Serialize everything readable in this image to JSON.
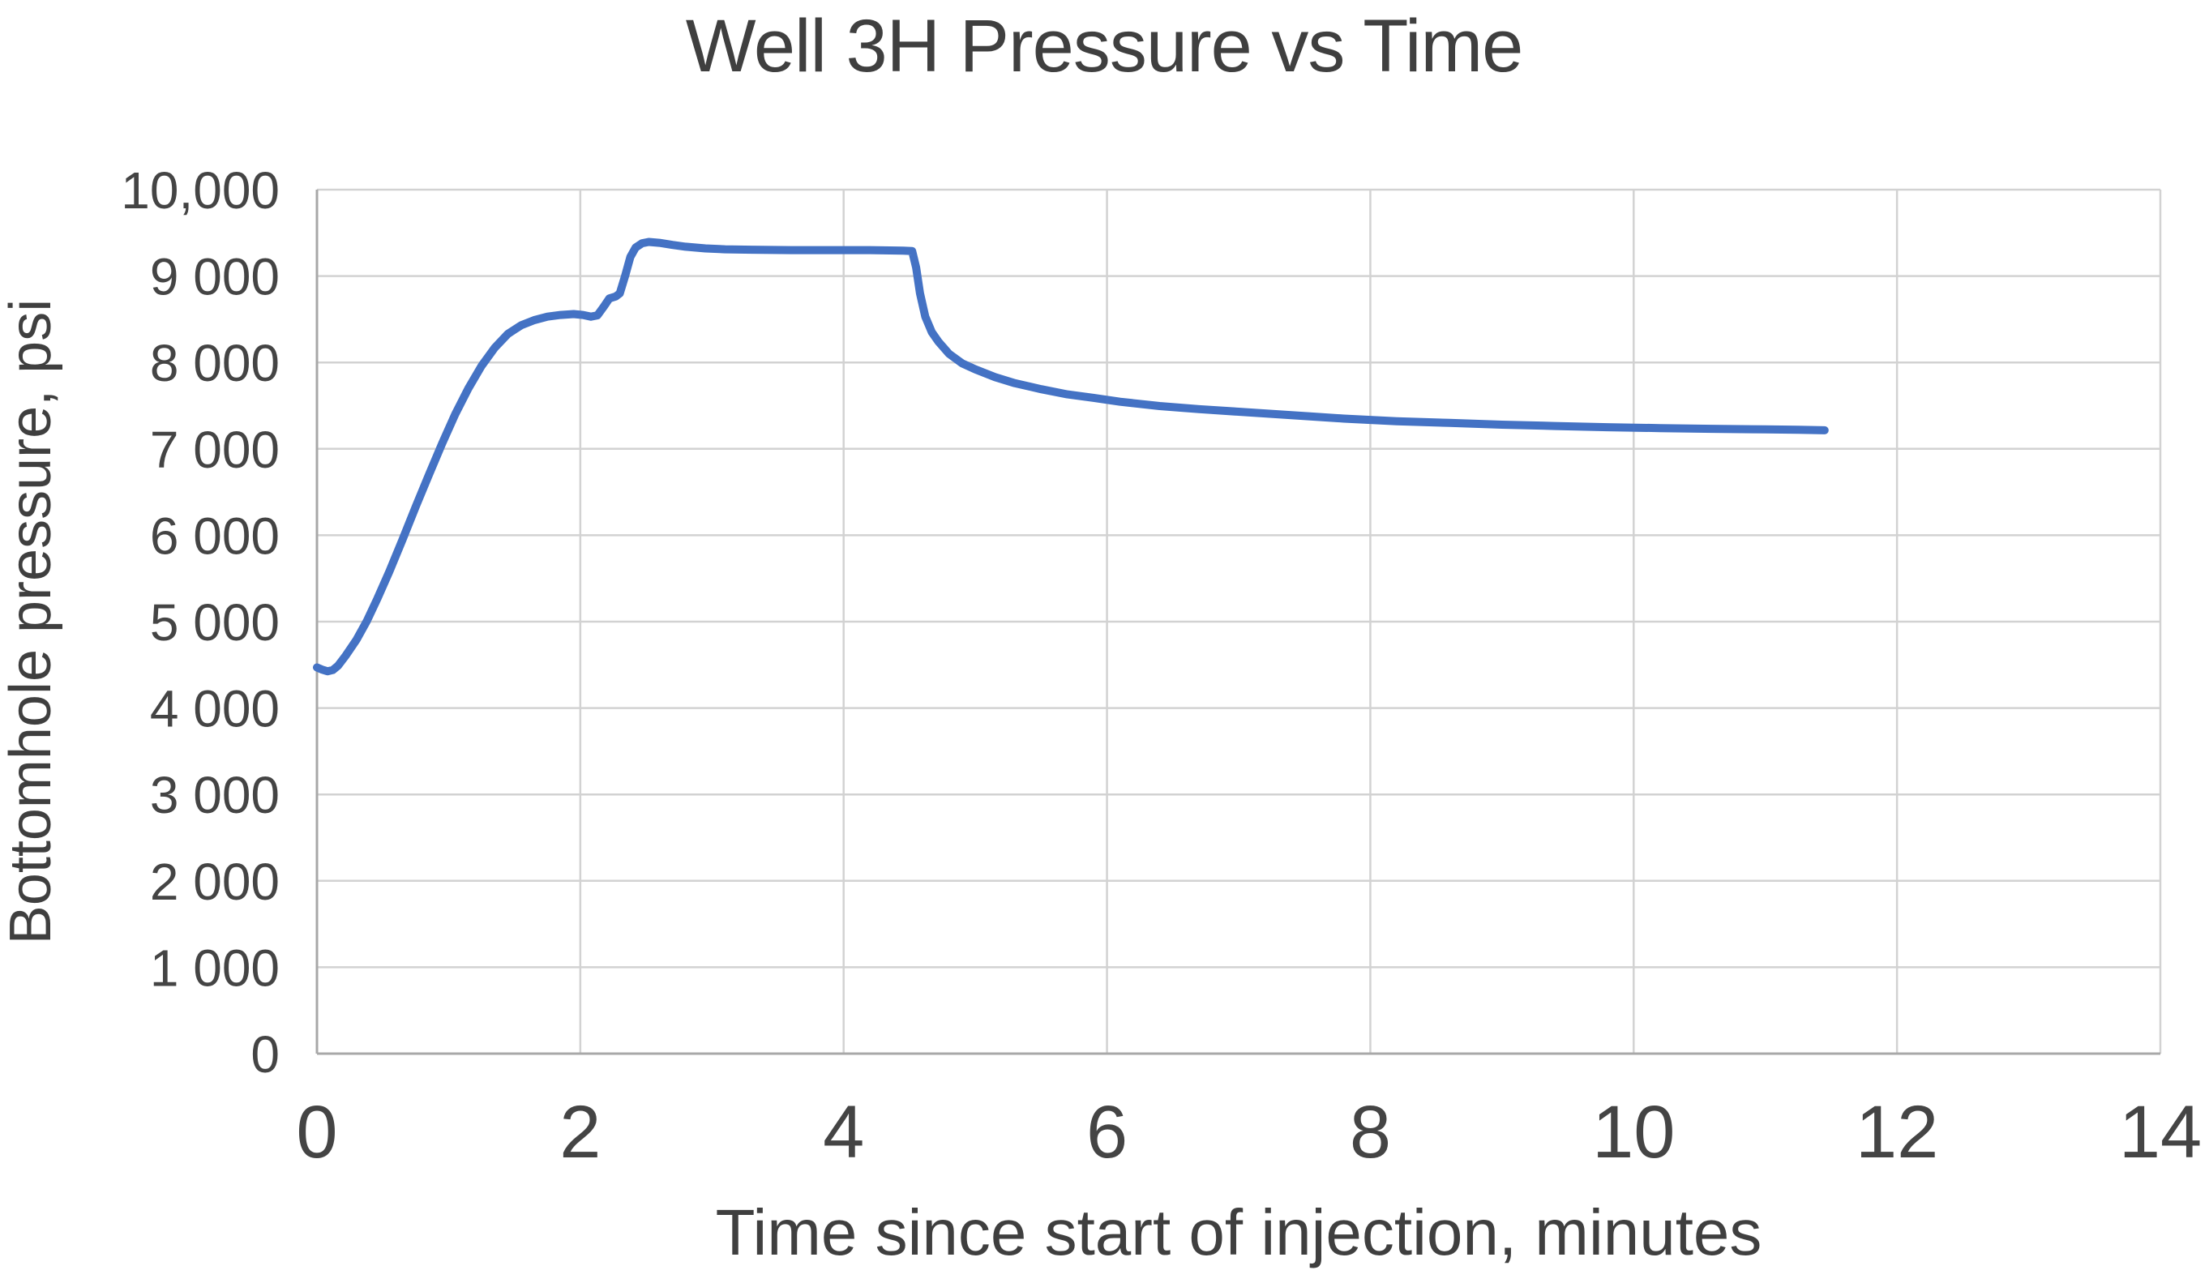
{
  "chart": {
    "title": "Well 3H Pressure vs Time",
    "y_axis": {
      "title": "Bottomhole pressure, psi",
      "tick_labels": [
        "10,000",
        "9 000",
        "8 000",
        "7 000",
        "6 000",
        "5 000",
        "4 000",
        "3 000",
        "2 000",
        "1 000",
        "0"
      ],
      "tick_values": [
        10000,
        9000,
        8000,
        7000,
        6000,
        5000,
        4000,
        3000,
        2000,
        1000,
        0
      ]
    },
    "x_axis": {
      "title": "Time since start of injection, minutes",
      "tick_labels": [
        "0",
        "2",
        "4",
        "6",
        "8",
        "10",
        "12",
        "14"
      ],
      "tick_values": [
        0,
        2,
        4,
        6,
        8,
        10,
        12,
        14
      ]
    },
    "colors": {
      "series_blue": "#4472c4",
      "gridline": "#d2d2d2",
      "axis_line": "#a8a8a8",
      "text_dark": "#3f3f3f",
      "background": "#ffffff"
    }
  },
  "chart_data": {
    "type": "line",
    "title": "Well 3H Pressure vs Time",
    "xlabel": "Time since start of injection, minutes",
    "ylabel": "Bottomhole pressure, psi",
    "xlim": [
      0,
      14
    ],
    "ylim": [
      0,
      10000
    ],
    "x_ticks": [
      0,
      2,
      4,
      6,
      8,
      10,
      12,
      14
    ],
    "y_ticks": [
      0,
      1000,
      2000,
      3000,
      4000,
      5000,
      6000,
      7000,
      8000,
      9000,
      10000
    ],
    "grid": true,
    "legend": false,
    "series": [
      {
        "name": "Bottomhole pressure",
        "color": "#4472c4",
        "points": [
          [
            0.0,
            4470
          ],
          [
            0.04,
            4445
          ],
          [
            0.08,
            4425
          ],
          [
            0.12,
            4440
          ],
          [
            0.16,
            4490
          ],
          [
            0.22,
            4610
          ],
          [
            0.3,
            4790
          ],
          [
            0.38,
            5010
          ],
          [
            0.46,
            5270
          ],
          [
            0.55,
            5580
          ],
          [
            0.65,
            5950
          ],
          [
            0.75,
            6330
          ],
          [
            0.85,
            6700
          ],
          [
            0.95,
            7060
          ],
          [
            1.05,
            7400
          ],
          [
            1.15,
            7700
          ],
          [
            1.25,
            7960
          ],
          [
            1.35,
            8170
          ],
          [
            1.45,
            8330
          ],
          [
            1.55,
            8430
          ],
          [
            1.65,
            8490
          ],
          [
            1.75,
            8530
          ],
          [
            1.85,
            8550
          ],
          [
            1.95,
            8560
          ],
          [
            2.02,
            8550
          ],
          [
            2.08,
            8530
          ],
          [
            2.13,
            8545
          ],
          [
            2.18,
            8650
          ],
          [
            2.22,
            8740
          ],
          [
            2.27,
            8765
          ],
          [
            2.3,
            8800
          ],
          [
            2.34,
            9000
          ],
          [
            2.38,
            9220
          ],
          [
            2.42,
            9330
          ],
          [
            2.47,
            9380
          ],
          [
            2.52,
            9395
          ],
          [
            2.6,
            9385
          ],
          [
            2.7,
            9360
          ],
          [
            2.8,
            9340
          ],
          [
            2.95,
            9320
          ],
          [
            3.1,
            9310
          ],
          [
            3.3,
            9305
          ],
          [
            3.6,
            9300
          ],
          [
            3.9,
            9300
          ],
          [
            4.2,
            9300
          ],
          [
            4.45,
            9295
          ],
          [
            4.52,
            9290
          ],
          [
            4.55,
            9100
          ],
          [
            4.58,
            8800
          ],
          [
            4.62,
            8530
          ],
          [
            4.67,
            8350
          ],
          [
            4.72,
            8240
          ],
          [
            4.8,
            8100
          ],
          [
            4.9,
            7990
          ],
          [
            5.0,
            7920
          ],
          [
            5.15,
            7830
          ],
          [
            5.3,
            7760
          ],
          [
            5.5,
            7690
          ],
          [
            5.7,
            7630
          ],
          [
            5.9,
            7590
          ],
          [
            6.1,
            7545
          ],
          [
            6.4,
            7495
          ],
          [
            6.7,
            7460
          ],
          [
            7.0,
            7430
          ],
          [
            7.4,
            7390
          ],
          [
            7.8,
            7350
          ],
          [
            8.2,
            7320
          ],
          [
            8.6,
            7300
          ],
          [
            9.0,
            7280
          ],
          [
            9.4,
            7265
          ],
          [
            9.8,
            7250
          ],
          [
            10.2,
            7240
          ],
          [
            10.6,
            7232
          ],
          [
            11.0,
            7225
          ],
          [
            11.25,
            7220
          ],
          [
            11.45,
            7215
          ]
        ]
      }
    ]
  }
}
